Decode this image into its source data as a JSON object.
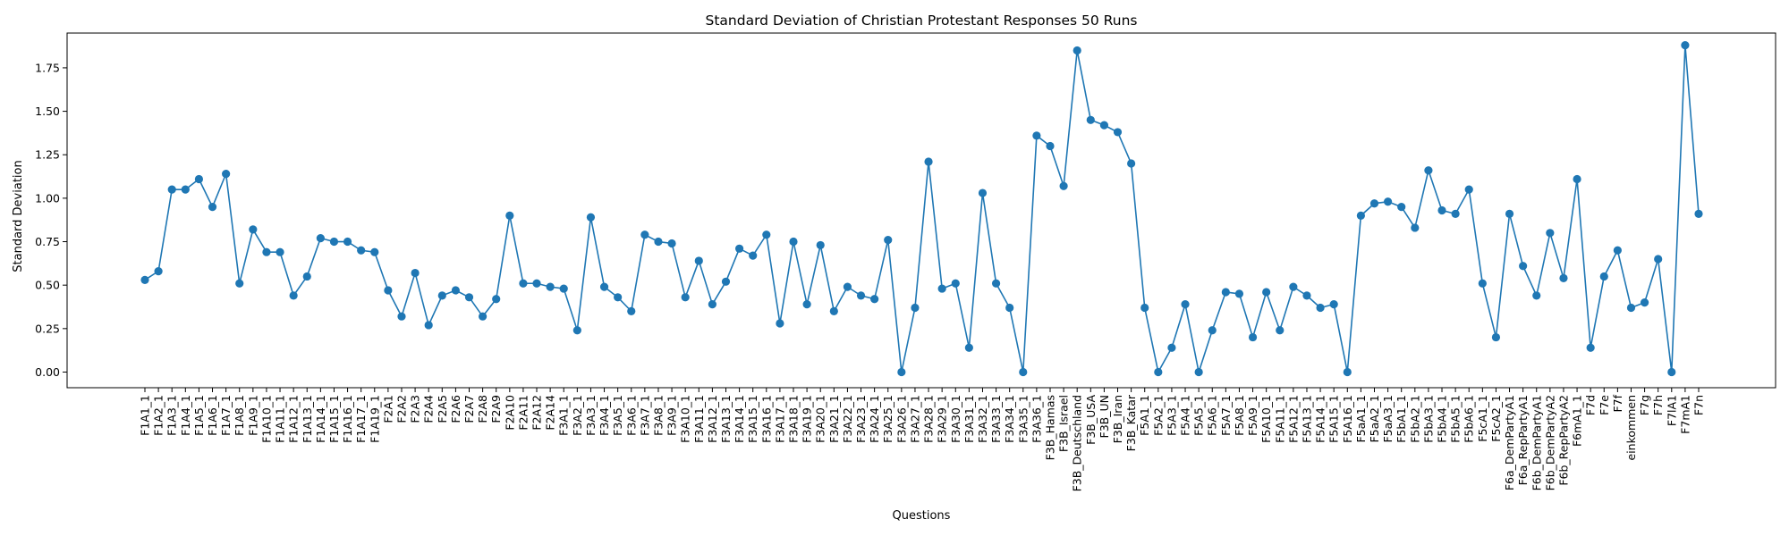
{
  "chart_data": {
    "type": "line",
    "title": "Standard Deviation of Christian Protestant Responses 50 Runs",
    "xlabel": "Questions",
    "ylabel": "Standard Deviation",
    "ylim": [
      -0.09,
      1.95
    ],
    "yticks": [
      0.0,
      0.25,
      0.5,
      0.75,
      1.0,
      1.25,
      1.5,
      1.75
    ],
    "ytick_labels": [
      "0.00",
      "0.25",
      "0.50",
      "0.75",
      "1.00",
      "1.25",
      "1.50",
      "1.75"
    ],
    "grid": false,
    "legend": "none",
    "marker": "circle",
    "color": "#1f77b4",
    "categories": [
      "F1A1_1",
      "F1A2_1",
      "F1A3_1",
      "F1A4_1",
      "F1A5_1",
      "F1A6_1",
      "F1A7_1",
      "F1A8_1",
      "F1A9_1",
      "F1A10_1",
      "F1A11_1",
      "F1A12_1",
      "F1A13_1",
      "F1A14_1",
      "F1A15_1",
      "F1A16_1",
      "F1A17_1",
      "F1A19_1",
      "F2A1",
      "F2A2",
      "F2A3",
      "F2A4",
      "F2A5",
      "F2A6",
      "F2A7",
      "F2A8",
      "F2A9",
      "F2A10",
      "F2A11",
      "F2A12",
      "F2A14",
      "F3A1_1",
      "F3A2_1",
      "F3A3_1",
      "F3A4_1",
      "F3A5_1",
      "F3A6_1",
      "F3A7_1",
      "F3A8_1",
      "F3A9_1",
      "F3A10_1",
      "F3A11_1",
      "F3A12_1",
      "F3A13_1",
      "F3A14_1",
      "F3A15_1",
      "F3A16_1",
      "F3A17_1",
      "F3A18_1",
      "F3A19_1",
      "F3A20_1",
      "F3A21_1",
      "F3A22_1",
      "F3A23_1",
      "F3A24_1",
      "F3A25_1",
      "F3A26_1",
      "F3A27_1",
      "F3A28_1",
      "F3A29_1",
      "F3A30_1",
      "F3A31_1",
      "F3A32_1",
      "F3A33_1",
      "F3A34_1",
      "F3A35_1",
      "F3A36_1",
      "F3B_Hamas",
      "F3B_Israel",
      "F3B_Deutschland",
      "F3B_USA",
      "F3B_UN",
      "F3B_Iran",
      "F3B_Katar",
      "F5A1_1",
      "F5A2_1",
      "F5A3_1",
      "F5A4_1",
      "F5A5_1",
      "F5A6_1",
      "F5A7_1",
      "F5A8_1",
      "F5A9_1",
      "F5A10_1",
      "F5A11_1",
      "F5A12_1",
      "F5A13_1",
      "F5A14_1",
      "F5A15_1",
      "F5A16_1",
      "F5aA1_1",
      "F5aA2_1",
      "F5aA3_1",
      "F5bA1_1",
      "F5bA2_1",
      "F5bA3_1",
      "F5bA4_1",
      "F5bA5_1",
      "F5bA6_1",
      "F5cA1_1",
      "F5cA2_1",
      "F6a_DemPartyA1",
      "F6a_RepPartyA1",
      "F6b_DemPartyA1",
      "F6b_DemPartyA2",
      "F6b_RepPartyA2",
      "F6mA1_1",
      "F7d",
      "F7e",
      "F7f",
      "einkommen",
      "F7g",
      "F7h",
      "F7lA1",
      "F7mA1",
      "F7n"
    ],
    "values": [
      0.53,
      0.58,
      1.05,
      1.05,
      1.11,
      0.95,
      1.14,
      0.51,
      0.82,
      0.69,
      0.69,
      0.44,
      0.55,
      0.77,
      0.75,
      0.75,
      0.7,
      0.69,
      0.47,
      0.32,
      0.57,
      0.27,
      0.44,
      0.47,
      0.43,
      0.32,
      0.42,
      0.9,
      0.51,
      0.51,
      0.49,
      0.48,
      0.24,
      0.89,
      0.49,
      0.43,
      0.35,
      0.79,
      0.75,
      0.74,
      0.43,
      0.64,
      0.39,
      0.52,
      0.71,
      0.67,
      0.79,
      0.28,
      0.75,
      0.39,
      0.73,
      0.35,
      0.49,
      0.44,
      0.42,
      0.76,
      0.0,
      0.37,
      1.21,
      0.48,
      0.51,
      0.14,
      1.03,
      0.51,
      0.37,
      0.0,
      1.36,
      1.3,
      1.07,
      1.85,
      1.45,
      1.42,
      1.38,
      1.2,
      0.37,
      0.0,
      0.14,
      0.39,
      0.0,
      0.24,
      0.46,
      0.45,
      0.2,
      0.46,
      0.24,
      0.49,
      0.44,
      0.37,
      0.39,
      0.0,
      0.9,
      0.97,
      0.98,
      0.95,
      0.83,
      1.16,
      0.93,
      0.91,
      1.05,
      0.51,
      0.2,
      0.91,
      0.61,
      0.44,
      0.8,
      0.54,
      1.11,
      0.14,
      0.55,
      0.7,
      0.37,
      0.4,
      0.65,
      0.0,
      1.88,
      0.91
    ]
  }
}
